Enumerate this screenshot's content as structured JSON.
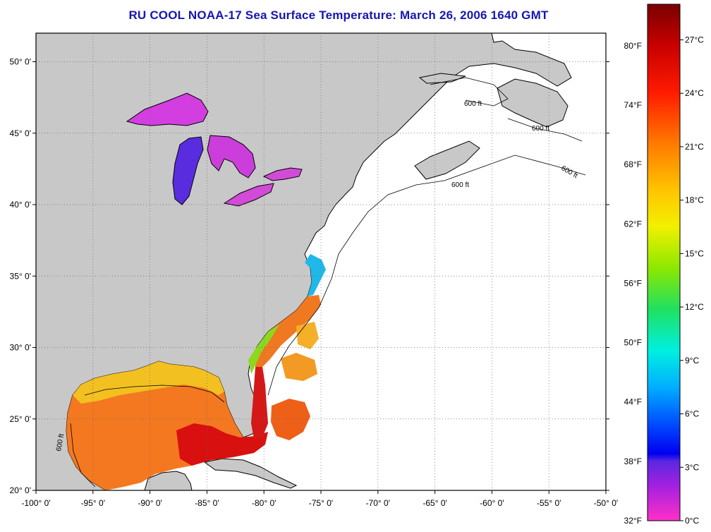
{
  "title": "RU COOL  NOAA-17  Sea Surface Temperature:  March 26, 2006 1640 GMT",
  "map": {
    "lon_range": [
      -100,
      -50
    ],
    "lat_range": [
      20,
      52
    ],
    "lon_ticks": [
      "-100° 0'",
      "-95° 0'",
      "-90° 0'",
      "-85° 0'",
      "-80° 0'",
      "-75° 0'",
      "-70° 0'",
      "-65° 0'",
      "-60° 0'",
      "-55° 0'",
      "-50° 0'"
    ],
    "lat_ticks": [
      "20° 0'",
      "25° 0'",
      "30° 0'",
      "35° 0'",
      "40° 0'",
      "45° 0'",
      "50° 0'"
    ],
    "contour_label": "600 ft",
    "colors": {
      "land": "#c8c8c8",
      "ocean": "#ffffff",
      "coast": "#000000",
      "grid": "#555555"
    }
  },
  "colorbar": {
    "fahrenheit_labels": [
      "80°F",
      "74°F",
      "68°F",
      "62°F",
      "56°F",
      "50°F",
      "44°F",
      "38°F",
      "32°F"
    ],
    "celsius_labels": [
      "27°C",
      "24°C",
      "21°C",
      "18°C",
      "15°C",
      "12°C",
      "9°C",
      "6°C",
      "3°C",
      "0°C"
    ]
  }
}
